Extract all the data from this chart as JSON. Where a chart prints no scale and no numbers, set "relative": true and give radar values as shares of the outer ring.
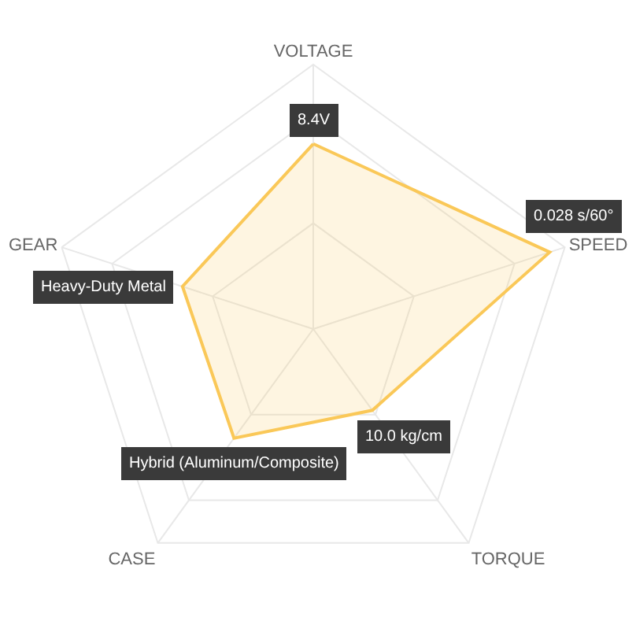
{
  "chart_data": {
    "type": "radar",
    "categories": [
      "VOLTAGE",
      "SPEED",
      "TORQUE",
      "CASE",
      "GEAR"
    ],
    "relative": true,
    "grid": true,
    "series": [
      {
        "color": "#fac858",
        "values": [
          0.7,
          0.94,
          0.38,
          0.51,
          0.52
        ]
      }
    ],
    "annotations": [
      {
        "text": "8.4V",
        "x": "VOLTAGE"
      },
      {
        "text": "0.028 s/60°",
        "x": "SPEED"
      },
      {
        "text": "10.0 kg/cm",
        "x": "TORQUE"
      },
      {
        "text": "Hybrid (Aluminum/Composite)",
        "x": "CASE"
      },
      {
        "text": "Heavy-Duty Metal",
        "x": "GEAR"
      }
    ]
  }
}
